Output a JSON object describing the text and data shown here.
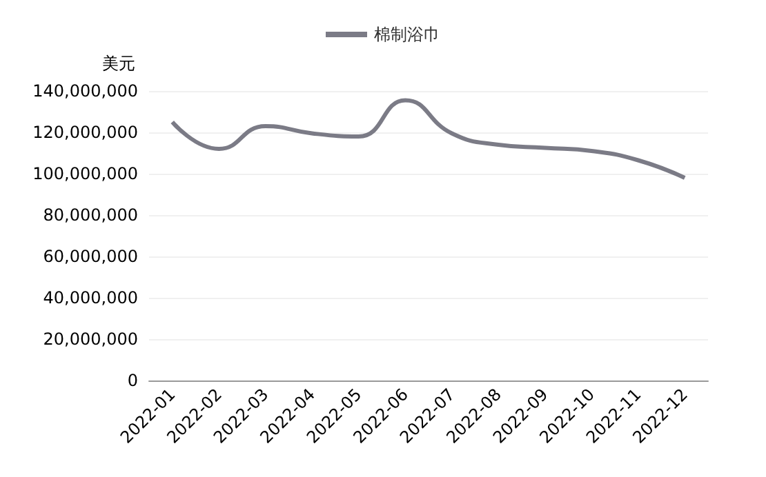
{
  "chart_data": {
    "type": "line",
    "ylabel": "美元",
    "categories": [
      "2022-01",
      "2022-02",
      "2022-03",
      "2022-04",
      "2022-05",
      "2022-06",
      "2022-07",
      "2022-08",
      "2022-09",
      "2022-10",
      "2022-11",
      "2022-12"
    ],
    "series": [
      {
        "name": "棉制浴巾",
        "color": "#7b7b86",
        "values": [
          125000000,
          112000000,
          123000000,
          119500000,
          118000000,
          135500000,
          119500000,
          114000000,
          112500000,
          111000000,
          106500000,
          98000000
        ]
      }
    ],
    "ylim": [
      0,
      140000000
    ],
    "yticks": [
      0,
      {
        "value": 20000000,
        "label": "20,000,000"
      },
      {
        "value": 40000000,
        "label": "40,000,000"
      },
      {
        "value": 60000000,
        "label": "60,000,000"
      },
      {
        "value": 80000000,
        "label": "80,000,000"
      },
      {
        "value": 100000000,
        "label": "100,000,000"
      },
      {
        "value": 120000000,
        "label": "120,000,000"
      },
      {
        "value": 140000000,
        "label": "140,000,000"
      }
    ],
    "grid": "y",
    "legend": "top",
    "marker": "none"
  }
}
